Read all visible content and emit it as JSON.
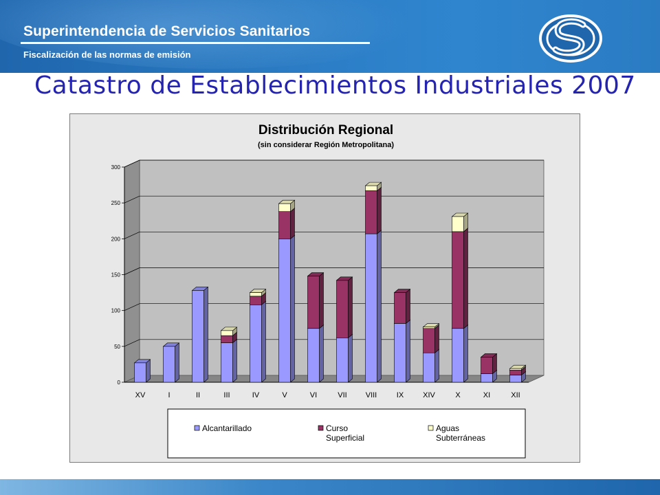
{
  "header": {
    "org_name": "Superintendencia de Servicios Sanitarios",
    "subtitle": "Fiscalización de las normas de emisión"
  },
  "page_title": "Catastro de Establecimientos Industriales 2007",
  "colors": {
    "header_blue": "#2b7cc4",
    "title_blue": "#2424b0",
    "alcantarillado": "#9999ff",
    "curso_superficial": "#993366",
    "aguas_subterraneas": "#ffffcc",
    "plot_background": "#c0c0c0"
  },
  "logo_icon": "sss-s-logo-icon",
  "chart_data": {
    "type": "bar",
    "stacked": true,
    "three_d": true,
    "title": "Distribución Regional",
    "subtitle": "(sin considerar Región Metropolitana)",
    "xlabel": "",
    "ylabel": "",
    "ylim": [
      0,
      300
    ],
    "yticks": [
      0,
      50,
      100,
      150,
      200,
      250,
      300
    ],
    "grid": true,
    "legend_position": "bottom",
    "categories": [
      "XV",
      "I",
      "II",
      "III",
      "IV",
      "V",
      "VI",
      "VII",
      "VIII",
      "IX",
      "XIV",
      "X",
      "XI",
      "XII"
    ],
    "series": [
      {
        "name": "Alcantarillado",
        "legend_lines": [
          "Alcantarillado"
        ],
        "values": [
          27,
          50,
          128,
          55,
          108,
          200,
          75,
          62,
          207,
          82,
          41,
          75,
          12,
          10
        ]
      },
      {
        "name": "Curso Superficial",
        "legend_lines": [
          "Curso",
          "Superficial"
        ],
        "values": [
          0,
          0,
          0,
          10,
          12,
          38,
          73,
          80,
          60,
          43,
          34,
          135,
          23,
          7
        ]
      },
      {
        "name": "Aguas Subterráneas",
        "legend_lines": [
          "Aguas",
          "Subterráneas"
        ],
        "values": [
          0,
          0,
          0,
          7,
          5,
          11,
          0,
          0,
          7,
          0,
          2,
          21,
          0,
          2
        ]
      }
    ]
  }
}
